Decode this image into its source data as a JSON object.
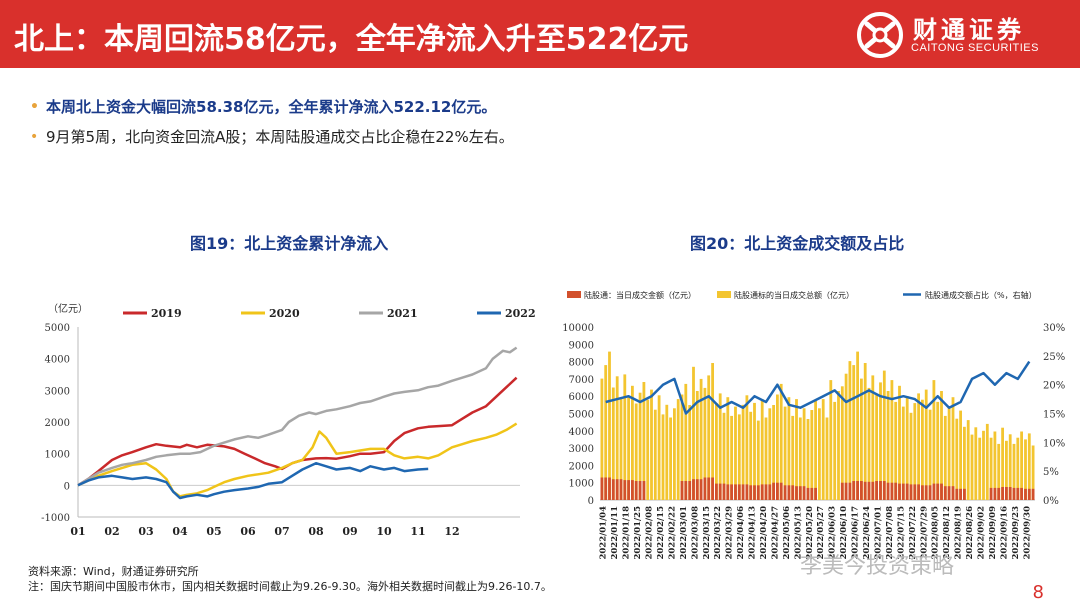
{
  "header": {
    "title": "北上：本周回流58亿元，全年净流入升至522亿元",
    "logo_cn": "财通证券",
    "logo_en": "CAITONG SECURITIES"
  },
  "bullets": [
    "本周北上资金大幅回流58.38亿元，全年累计净流入522.12亿元。",
    "9月第5周，北向资金回流A股；本周陆股通成交占比企稳在22%左右。"
  ],
  "colors": {
    "brand_red": "#d9302c",
    "title_blue": "#1b3b8a",
    "s2019": "#c9292b",
    "s2020": "#f0c419",
    "s2021": "#a6a6a6",
    "s2022": "#1f67b1",
    "bar_red": "#d2502c",
    "bar_yellow": "#f3c530",
    "ratio_blue": "#1f67b1"
  },
  "chart_data": [
    {
      "type": "line",
      "title": "图19：北上资金累计净流入",
      "ylabel": "（亿元）",
      "ylim": [
        -1000,
        5000
      ],
      "yticks": [
        -1000,
        0,
        1000,
        2000,
        3000,
        4000,
        5000
      ],
      "xticks": [
        "01",
        "02",
        "03",
        "04",
        "05",
        "06",
        "07",
        "08",
        "09",
        "10",
        "11",
        "12"
      ],
      "series": [
        {
          "name": "2019",
          "color_key": "s2019",
          "x": [
            0,
            0.3,
            0.6,
            1,
            1.3,
            1.6,
            2,
            2.3,
            2.6,
            3,
            3.2,
            3.5,
            3.8,
            4,
            4.3,
            4.6,
            4.9,
            5.2,
            5.5,
            5.8,
            6,
            6.3,
            6.6,
            7,
            7.3,
            7.6,
            8,
            8.3,
            8.6,
            9,
            9.3,
            9.6,
            10,
            10.3,
            10.6,
            11,
            11.3,
            11.6,
            12,
            12.3,
            12.6,
            12.9
          ],
          "values": [
            0,
            200,
            450,
            800,
            950,
            1050,
            1200,
            1300,
            1250,
            1200,
            1280,
            1200,
            1280,
            1260,
            1230,
            1150,
            1000,
            850,
            700,
            600,
            520,
            700,
            800,
            850,
            860,
            840,
            920,
            1000,
            1000,
            1050,
            1400,
            1650,
            1800,
            1850,
            1870,
            1900,
            2100,
            2300,
            2500,
            2800,
            3100,
            3400
          ]
        },
        {
          "name": "2020",
          "color_key": "s2020",
          "x": [
            0,
            0.3,
            0.6,
            1,
            1.3,
            1.6,
            2,
            2.3,
            2.6,
            2.8,
            3,
            3.2,
            3.5,
            3.8,
            4,
            4.3,
            4.6,
            5,
            5.3,
            5.6,
            6,
            6.3,
            6.6,
            6.9,
            7.1,
            7.3,
            7.6,
            8,
            8.3,
            8.6,
            9,
            9.3,
            9.6,
            10,
            10.3,
            10.6,
            11,
            11.3,
            11.6,
            12,
            12.3,
            12.6,
            12.9
          ],
          "values": [
            0,
            150,
            300,
            450,
            550,
            650,
            700,
            500,
            200,
            -200,
            -350,
            -300,
            -250,
            -150,
            -50,
            100,
            200,
            300,
            350,
            400,
            550,
            700,
            800,
            1200,
            1700,
            1500,
            1000,
            1050,
            1100,
            1150,
            1150,
            950,
            850,
            900,
            850,
            950,
            1200,
            1300,
            1400,
            1500,
            1600,
            1750,
            1950
          ]
        },
        {
          "name": "2021",
          "color_key": "s2021",
          "x": [
            0,
            0.3,
            0.6,
            1,
            1.3,
            1.6,
            2,
            2.3,
            2.6,
            3,
            3.3,
            3.6,
            4,
            4.3,
            4.6,
            5,
            5.3,
            5.6,
            6,
            6.2,
            6.5,
            6.8,
            7,
            7.3,
            7.6,
            8,
            8.3,
            8.6,
            9,
            9.3,
            9.6,
            10,
            10.3,
            10.6,
            11,
            11.3,
            11.6,
            12,
            12.2,
            12.5,
            12.7,
            12.9
          ],
          "values": [
            0,
            200,
            400,
            550,
            650,
            700,
            800,
            900,
            950,
            1000,
            1000,
            1050,
            1250,
            1350,
            1450,
            1550,
            1500,
            1600,
            1750,
            2000,
            2200,
            2300,
            2250,
            2350,
            2400,
            2500,
            2600,
            2650,
            2800,
            2900,
            2950,
            3000,
            3100,
            3150,
            3300,
            3400,
            3500,
            3700,
            4000,
            4250,
            4200,
            4350
          ]
        },
        {
          "name": "2022",
          "color_key": "s2022",
          "x": [
            0,
            0.3,
            0.6,
            1,
            1.3,
            1.6,
            2,
            2.3,
            2.6,
            2.8,
            3,
            3.2,
            3.5,
            3.8,
            4,
            4.3,
            4.6,
            5,
            5.3,
            5.6,
            6,
            6.3,
            6.6,
            7,
            7.3,
            7.6,
            8,
            8.3,
            8.6,
            9,
            9.3,
            9.6,
            10,
            10.3
          ],
          "values": [
            0,
            150,
            250,
            300,
            250,
            200,
            250,
            200,
            100,
            -200,
            -400,
            -350,
            -300,
            -350,
            -280,
            -200,
            -150,
            -100,
            -50,
            50,
            100,
            300,
            500,
            700,
            600,
            500,
            550,
            450,
            600,
            500,
            550,
            450,
            500,
            520
          ]
        }
      ]
    },
    {
      "type": "bar",
      "title": "图20：北上资金成交额及占比",
      "ylim": [
        0,
        10000
      ],
      "yticks": [
        0,
        1000,
        2000,
        3000,
        4000,
        5000,
        6000,
        7000,
        8000,
        9000,
        10000
      ],
      "y2lim": [
        0,
        30
      ],
      "y2ticks": [
        "0%",
        "5%",
        "10%",
        "15%",
        "20%",
        "25%",
        "30%"
      ],
      "legend": [
        "陆股通：当日成交金额（亿元）",
        "陆股通标的当日成交总额（亿元）",
        "陆股通成交额占比（%，右轴）"
      ],
      "categories": [
        "2022/01/04",
        "2022/01/11",
        "2022/01/18",
        "2022/01/25",
        "2022/02/08",
        "2022/02/15",
        "2022/02/22",
        "2022/03/01",
        "2022/03/08",
        "2022/03/15",
        "2022/03/22",
        "2022/03/29",
        "2022/04/06",
        "2022/04/13",
        "2022/04/20",
        "2022/04/27",
        "2022/05/06",
        "2022/05/13",
        "2022/05/20",
        "2022/05/27",
        "2022/06/03",
        "2022/06/10",
        "2022/06/17",
        "2022/06/24",
        "2022/07/01",
        "2022/07/08",
        "2022/07/15",
        "2022/07/22",
        "2022/07/29",
        "2022/08/05",
        "2022/08/12",
        "2022/08/19",
        "2022/08/26",
        "2022/09/02",
        "2022/09/09",
        "2022/09/16",
        "2022/09/23",
        "2022/09/30"
      ],
      "series": [
        {
          "name": "陆股通：当日成交金额（亿元）",
          "values": [
            1300,
            1200,
            1150,
            1100,
            0,
            0,
            0,
            1100,
            1200,
            1300,
            950,
            900,
            900,
            850,
            900,
            1000,
            850,
            800,
            700,
            0,
            0,
            1000,
            1100,
            1050,
            1100,
            1000,
            950,
            900,
            850,
            950,
            800,
            650,
            0,
            0,
            700,
            750,
            700,
            650
          ]
        },
        {
          "name": "陆股通标的当日成交总额（亿元）",
          "values": [
            7800,
            6500,
            6600,
            6200,
            5800,
            5500,
            5300,
            6100,
            7000,
            7200,
            5600,
            5400,
            5500,
            5100,
            5300,
            6100,
            5400,
            5300,
            5200,
            5300,
            6300,
            7300,
            7800,
            7200,
            6800,
            6300,
            6000,
            5600,
            5800,
            6300,
            5400,
            4700,
            4200,
            4000,
            3600,
            3800,
            3600,
            3500
          ]
        },
        {
          "name": "陆股通成交额占比（%，右轴）",
          "values": [
            17,
            17.5,
            18,
            17,
            18,
            20,
            21,
            15,
            17,
            18,
            16,
            17,
            16,
            18,
            17,
            20,
            16.5,
            16,
            17,
            18,
            19,
            17,
            18,
            19,
            18,
            17.5,
            18,
            17.5,
            16,
            18,
            16,
            17,
            21,
            22,
            20,
            22,
            21,
            24
          ]
        }
      ]
    }
  ],
  "footer": {
    "source": "资料来源：Wind，财通证券研究所",
    "note": "注：国庆节期间中国股市休市，国内相关数据时间截止为9.26-9.30。海外相关数据时间截止为9.26-10.7。"
  },
  "watermark": "李美今投资策略",
  "page_number": "8"
}
